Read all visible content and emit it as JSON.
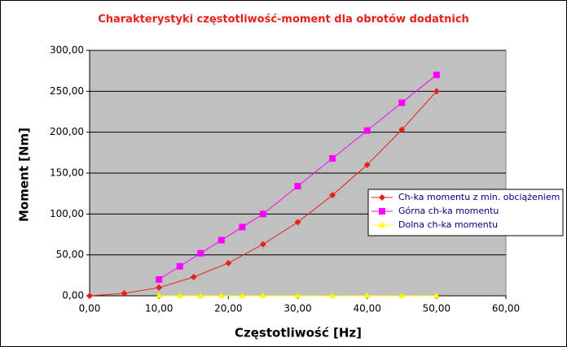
{
  "chart_data": {
    "type": "line",
    "title": "Charakterystyki częstotliwość-moment dla obrotów dodatnich",
    "x_label": "Częstotliwość [Hz]",
    "y_label": "Moment [Nm]",
    "xlim": [
      0,
      60
    ],
    "ylim": [
      0,
      300
    ],
    "xticks": [
      {
        "value": 0,
        "label": "0,00"
      },
      {
        "value": 10,
        "label": "10,00"
      },
      {
        "value": 20,
        "label": "20,00"
      },
      {
        "value": 30,
        "label": "30,00"
      },
      {
        "value": 40,
        "label": "40,00"
      },
      {
        "value": 50,
        "label": "50,00"
      },
      {
        "value": 60,
        "label": "60,00"
      }
    ],
    "yticks": [
      {
        "value": 0,
        "label": "0,00"
      },
      {
        "value": 50,
        "label": "50,00"
      },
      {
        "value": 100,
        "label": "100,00"
      },
      {
        "value": 150,
        "label": "150,00"
      },
      {
        "value": 200,
        "label": "200,00"
      },
      {
        "value": 250,
        "label": "250,00"
      },
      {
        "value": 300,
        "label": "300,00"
      }
    ],
    "grid": true,
    "legend": "right",
    "series": [
      {
        "name": "Ch-ka momentu z min. obciążeniem",
        "color": "#e8201a",
        "marker": "diamond",
        "x": [
          0,
          5,
          10,
          15,
          20,
          25,
          30,
          35,
          40,
          45,
          50
        ],
        "values": [
          0,
          3,
          10,
          23,
          40,
          63,
          90,
          123,
          160,
          203,
          250
        ]
      },
      {
        "name": "Górna ch-ka momentu",
        "color": "#ff00ff",
        "marker": "square",
        "x": [
          10,
          13,
          16,
          19,
          22,
          25,
          30,
          35,
          40,
          45,
          50
        ],
        "values": [
          20,
          36,
          52,
          68,
          84,
          100,
          134,
          168,
          202,
          236,
          270
        ]
      },
      {
        "name": "Dolna ch-ka momentu",
        "color": "#ffff00",
        "marker": "triangle",
        "x": [
          10,
          13,
          16,
          19,
          22,
          25,
          30,
          35,
          40,
          45,
          50
        ],
        "values": [
          0,
          0,
          0,
          0,
          0,
          0,
          0,
          0,
          0,
          0,
          0
        ]
      }
    ]
  }
}
